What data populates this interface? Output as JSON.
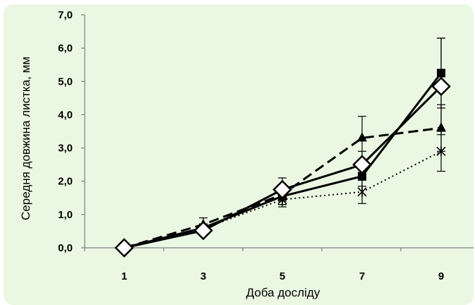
{
  "chart_data": {
    "type": "line",
    "xlabel": "Доба досліду",
    "ylabel": "Середня довжина листка, мм",
    "x": [
      "1",
      "3",
      "5",
      "7",
      "9"
    ],
    "ylim": [
      0,
      7
    ],
    "y_ticks": [
      "0,0",
      "1,0",
      "2,0",
      "3,0",
      "4,0",
      "5,0",
      "6,0",
      "7,0"
    ],
    "grid": false,
    "legend": "none",
    "series": [
      {
        "marker": "square",
        "style": "solid",
        "color": "#000000",
        "values": [
          0.0,
          0.6,
          1.55,
          2.15,
          5.25
        ],
        "error": [
          0.0,
          0.12,
          0.25,
          0.3,
          1.05
        ]
      },
      {
        "marker": "triangle",
        "style": "dashed",
        "color": "#000000",
        "values": [
          0.0,
          0.7,
          1.6,
          3.3,
          3.6
        ],
        "error": [
          0.0,
          0.2,
          0.3,
          0.65,
          0.7
        ]
      },
      {
        "marker": "star",
        "style": "dotted",
        "color": "#000000",
        "values": [
          0.0,
          0.58,
          1.45,
          1.68,
          2.9
        ],
        "error": [
          0.0,
          0.12,
          0.22,
          0.35,
          0.6
        ]
      },
      {
        "marker": "diamond-open",
        "style": "solid",
        "color": "#000000",
        "values": [
          0.0,
          0.52,
          1.75,
          2.5,
          4.85
        ],
        "error": [
          0.0,
          0.1,
          0.35,
          0.4,
          1.45
        ]
      }
    ]
  }
}
